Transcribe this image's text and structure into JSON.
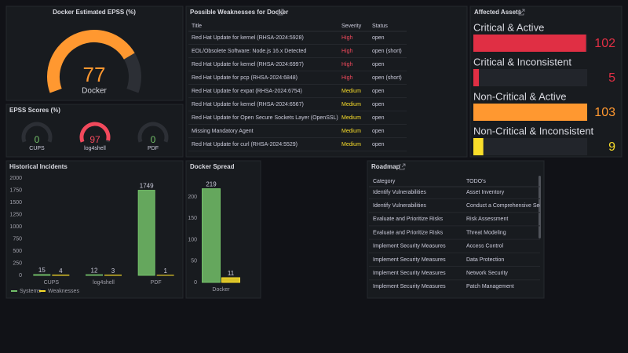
{
  "epss_gauge": {
    "title": "Docker Estimated EPSS (%)",
    "value": 77,
    "label": "Docker",
    "min": 0,
    "max": 100,
    "color": "#ff9830"
  },
  "epss_scores": {
    "title": "EPSS Scores (%)",
    "min": 0,
    "max": 100,
    "items": [
      {
        "label": "CUPS",
        "value": 0,
        "color": "#73bf69"
      },
      {
        "label": "log4shell",
        "value": 97,
        "color": "#f2495c"
      },
      {
        "label": "PDF",
        "value": 0,
        "color": "#73bf69"
      }
    ]
  },
  "weaknesses": {
    "title": "Possible Weaknesses for Docker",
    "columns": [
      "Title",
      "Severity",
      "Status"
    ],
    "severity_colors": {
      "High": "#f2495c",
      "Medium": "#fade2a"
    },
    "rows": [
      [
        "Red Hat Update for kernel (RHSA-2024:5928)",
        "High",
        "open"
      ],
      [
        "EOL/Obsolete Software: Node.js 16.x Detected",
        "High",
        "open (short)"
      ],
      [
        "Red Hat Update for kernel (RHSA-2024:6997)",
        "High",
        "open"
      ],
      [
        "Red Hat Update for pcp (RHSA-2024:6848)",
        "High",
        "open (short)"
      ],
      [
        "Red Hat Update for expat (RHSA-2024:6754)",
        "Medium",
        "open"
      ],
      [
        "Red Hat Update for kernel (RHSA-2024:6567)",
        "Medium",
        "open"
      ],
      [
        "Red Hat Update for Open Secure Sockets Layer (OpenSSL)",
        "Medium",
        "open"
      ],
      [
        "Missing Mandatory Agent",
        "Medium",
        "open"
      ],
      [
        "Red Hat Update for curl (RHSA-2024:5529)",
        "Medium",
        "open"
      ]
    ]
  },
  "affected_assets": {
    "title": "Affected Assets",
    "items": [
      {
        "label": "Critical & Active",
        "value": 102,
        "color": "#e02f44"
      },
      {
        "label": "Critical & Inconsistent",
        "value": 5,
        "color": "#e02f44"
      },
      {
        "label": "Non-Critical & Active",
        "value": 103,
        "color": "#ff9830"
      },
      {
        "label": "Non-Critical & Inconsistent",
        "value": 9,
        "color": "#fade2a"
      }
    ]
  },
  "historical_incidents": {
    "type": "bar",
    "title": "Historical Incidents",
    "categories": [
      "CUPS",
      "log4shell",
      "PDF"
    ],
    "series": [
      {
        "name": "Systems",
        "color": "#73bf69",
        "values": [
          15,
          12,
          1749
        ]
      },
      {
        "name": "Weaknesses",
        "color": "#fade2a",
        "values": [
          4,
          3,
          1
        ]
      }
    ],
    "ylim": [
      0,
      2000
    ],
    "yticks": [
      0,
      250,
      500,
      750,
      1000,
      1250,
      1500,
      1750,
      2000
    ],
    "legend": "bottom-left",
    "grid": false
  },
  "docker_spread": {
    "type": "bar",
    "title": "Docker Spread",
    "categories": [
      "Docker"
    ],
    "series": [
      {
        "color": "#73bf69",
        "values": [
          219
        ]
      },
      {
        "color": "#fade2a",
        "values": [
          11
        ]
      }
    ],
    "ylim": [
      0,
      230
    ],
    "yticks": [
      0,
      50,
      100,
      150,
      200
    ],
    "grid": false
  },
  "roadmap": {
    "title": "Roadmap",
    "columns": [
      "Category",
      "TODO's"
    ],
    "rows": [
      [
        "Identify Vulnerabilities",
        "Asset Inventory"
      ],
      [
        "Identify Vulnerabilities",
        "Conduct a Comprehensive Security Audit"
      ],
      [
        "Evaluate and Prioritize Risks",
        "Risk Assessment"
      ],
      [
        "Evaluate and Prioritize Risks",
        "Threat Modeling"
      ],
      [
        "Implement Security Measures",
        "Access Control"
      ],
      [
        "Implement Security Measures",
        "Data Protection"
      ],
      [
        "Implement Security Measures",
        "Network Security"
      ],
      [
        "Implement Security Measures",
        "Patch Management"
      ]
    ]
  }
}
